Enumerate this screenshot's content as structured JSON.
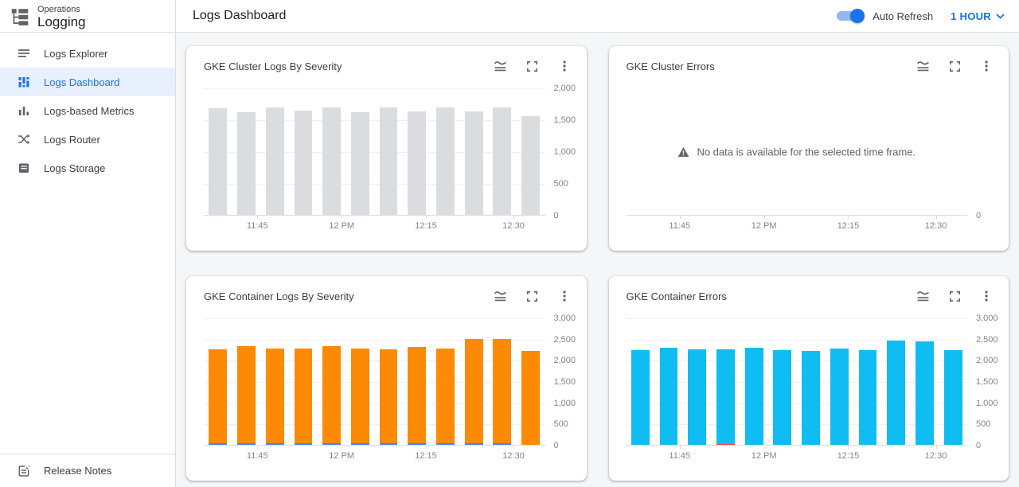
{
  "app": {
    "product": "Operations",
    "section": "Logging"
  },
  "header": {
    "title": "Logs Dashboard",
    "auto_refresh_label": "Auto Refresh",
    "auto_refresh_on": true,
    "time_range": "1 HOUR"
  },
  "sidebar": {
    "items": [
      {
        "label": "Logs Explorer",
        "selected": false
      },
      {
        "label": "Logs Dashboard",
        "selected": true
      },
      {
        "label": "Logs-based Metrics",
        "selected": false
      },
      {
        "label": "Logs Router",
        "selected": false
      },
      {
        "label": "Logs Storage",
        "selected": false
      }
    ],
    "footer_item": {
      "label": "Release Notes"
    }
  },
  "colors": {
    "accent": "#1a73e8",
    "selected_bg": "#e8f0fe",
    "bar_gray": "#dadce0",
    "bar_orange": "#fc8a05",
    "bar_cyan": "#0fbdf2",
    "bar_blue": "#4285f4",
    "bar_red": "#e8453c"
  },
  "chart_data": [
    {
      "type": "bar",
      "title": "GKE Cluster Logs By Severity",
      "x_tick_labels": [
        "11:45",
        "12 PM",
        "12:15",
        "12:30"
      ],
      "ylim": [
        0,
        2000
      ],
      "ytick_labels": [
        "2,000",
        "1,500",
        "1,000",
        "500",
        "0"
      ],
      "grid": true,
      "legend": "none",
      "series": [
        {
          "name": "logs",
          "color": "#dadce0",
          "values": [
            1680,
            1615,
            1685,
            1635,
            1685,
            1610,
            1685,
            1625,
            1685,
            1620,
            1685,
            1550
          ]
        }
      ]
    },
    {
      "type": "bar",
      "title": "GKE Cluster Errors",
      "x_tick_labels": [
        "11:45",
        "12 PM",
        "12:15",
        "12:30"
      ],
      "ylim": [
        0,
        1
      ],
      "ytick_labels": [
        "0"
      ],
      "grid": false,
      "legend": "none",
      "empty": true,
      "no_data_message": "No data is available for the selected time frame.",
      "series": []
    },
    {
      "type": "bar",
      "title": "GKE Container Logs By Severity",
      "x_tick_labels": [
        "11:45",
        "12 PM",
        "12:15",
        "12:30"
      ],
      "ylim": [
        0,
        3000
      ],
      "ytick_labels": [
        "3,000",
        "2,500",
        "2,000",
        "1,500",
        "1,000",
        "500",
        "0"
      ],
      "grid": true,
      "legend": "none",
      "series": [
        {
          "name": "segment-blue",
          "color": "#4285f4",
          "values": [
            35,
            35,
            35,
            35,
            35,
            35,
            35,
            35,
            35,
            35,
            35,
            0
          ]
        },
        {
          "name": "segment-orange",
          "color": "#fc8a05",
          "values": [
            2210,
            2290,
            2240,
            2240,
            2290,
            2240,
            2210,
            2270,
            2230,
            2450,
            2450,
            2210
          ]
        }
      ]
    },
    {
      "type": "bar",
      "title": "GKE Container Errors",
      "x_tick_labels": [
        "11:45",
        "12 PM",
        "12:15",
        "12:30"
      ],
      "ylim": [
        0,
        3000
      ],
      "ytick_labels": [
        "3,000",
        "2,500",
        "2,000",
        "1,500",
        "1,000",
        "500",
        "0"
      ],
      "grid": true,
      "legend": "none",
      "series": [
        {
          "name": "segment-red",
          "color": "#e8453c",
          "values": [
            0,
            0,
            0,
            12,
            0,
            0,
            0,
            0,
            0,
            0,
            0,
            0
          ]
        },
        {
          "name": "segment-cyan",
          "color": "#0fbdf2",
          "values": [
            2230,
            2280,
            2250,
            2240,
            2280,
            2240,
            2220,
            2260,
            2230,
            2450,
            2440,
            2230
          ]
        }
      ]
    }
  ]
}
